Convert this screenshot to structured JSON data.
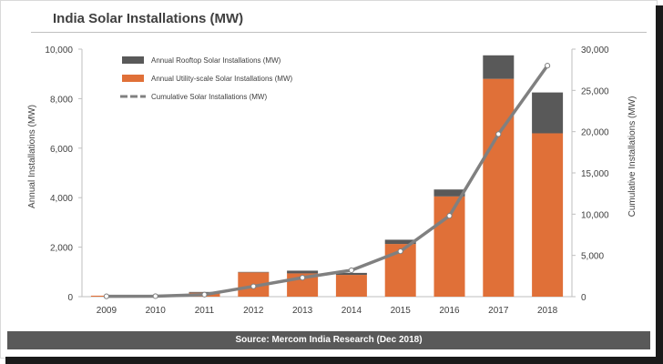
{
  "chart_data": {
    "type": "bar",
    "title": "India Solar Installations (MW)",
    "categories": [
      "2009",
      "2010",
      "2011",
      "2012",
      "2013",
      "2014",
      "2015",
      "2016",
      "2017",
      "2018"
    ],
    "series": [
      {
        "name": "Annual Utility-scale Solar Installations (MW)",
        "kind": "stacked-bar",
        "axis": "left",
        "color": "#e07038",
        "values": [
          40,
          20,
          160,
          980,
          940,
          880,
          2130,
          4050,
          8800,
          6600
        ]
      },
      {
        "name": "Annual Rooftop Solar Installations (MW)",
        "kind": "stacked-bar",
        "axis": "left",
        "color": "#595959",
        "values": [
          0,
          0,
          30,
          20,
          110,
          80,
          170,
          280,
          950,
          1650
        ]
      },
      {
        "name": "Cumulative Solar Installations (MW)",
        "kind": "line",
        "axis": "right",
        "color": "#808080",
        "values": [
          40,
          60,
          250,
          1250,
          2300,
          3200,
          5500,
          9800,
          19700,
          28000
        ]
      }
    ],
    "ylabel": "Annual Installations (MW)",
    "y2label": "Cumulative Installations (MW)",
    "ylim": [
      0,
      10000
    ],
    "y2lim": [
      0,
      30000
    ],
    "yticks": [
      "0",
      "2,000",
      "4,000",
      "6,000",
      "8,000",
      "10,000"
    ],
    "y2ticks": [
      "0",
      "5,000",
      "10,000",
      "15,000",
      "20,000",
      "25,000",
      "30,000"
    ],
    "legend_position": "top-left",
    "grid": false
  },
  "footer": {
    "source": "Source: Mercom  India  Research (Dec 2018)"
  }
}
